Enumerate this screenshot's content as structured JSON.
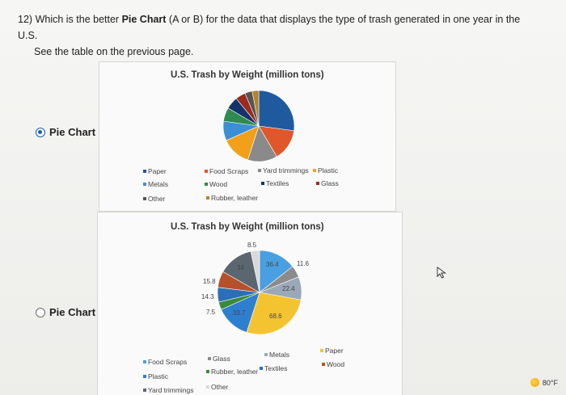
{
  "question": {
    "number": "12)",
    "text_before": "Which is the better ",
    "text_bold": "Pie Chart",
    "text_after": " (A or B) for the data that displays the type of trash generated in one year in the U.S.",
    "line2": "See the table on the previous page."
  },
  "options": [
    {
      "label": "Pie Chart",
      "selected": true
    },
    {
      "label": "Pie Chart",
      "selected": false
    }
  ],
  "chart_data": [
    {
      "type": "pie",
      "title": "U.S. Trash by Weight (million tons)",
      "legend_placement": "bottom",
      "legend": [
        "Paper",
        "Food Scraps",
        "Yard trimmings",
        "Plastic",
        "Metals",
        "Wood",
        "Textiles",
        "Glass",
        "Other",
        "Rubber, leather"
      ],
      "slices": [
        {
          "label": "Paper",
          "value": 68.6,
          "color": "#1f5a9e"
        },
        {
          "label": "Food Scraps",
          "value": 36.4,
          "color": "#e0572b"
        },
        {
          "label": "Yard trimmings",
          "value": 34,
          "color": "#8a8a8a"
        },
        {
          "label": "Plastic",
          "value": 33.7,
          "color": "#f2a019"
        },
        {
          "label": "Metals",
          "value": 22.4,
          "color": "#3b8fd6"
        },
        {
          "label": "Wood",
          "value": 15.8,
          "color": "#2e8a4e"
        },
        {
          "label": "Textiles",
          "value": 14.3,
          "color": "#14336b"
        },
        {
          "label": "Glass",
          "value": 11.6,
          "color": "#9c2a1e"
        },
        {
          "label": "Other",
          "value": 8.5,
          "color": "#555555"
        },
        {
          "label": "Rubber, leather",
          "value": 7.5,
          "color": "#b7832a"
        }
      ]
    },
    {
      "type": "pie",
      "title": "U.S. Trash by Weight (million tons)",
      "legend_placement": "bottom",
      "legend": [
        "Food Scraps",
        "Glass",
        "Metals",
        "Paper",
        "Plastic",
        "Rubber, leather",
        "Textiles",
        "Wood",
        "Yard trimmings",
        "Other"
      ],
      "slices": [
        {
          "label": "Food Scraps",
          "value": 36.4,
          "color": "#4a9fe0"
        },
        {
          "label": "Glass",
          "value": 11.6,
          "color": "#8c8c8c"
        },
        {
          "label": "Metals",
          "value": 22.4,
          "color": "#9aa9b8"
        },
        {
          "label": "Paper",
          "value": 68.6,
          "color": "#f4c430"
        },
        {
          "label": "Plastic",
          "value": 33.7,
          "color": "#2f7fd0"
        },
        {
          "label": "Rubber, leather",
          "value": 7.5,
          "color": "#3a8a3a"
        },
        {
          "label": "Textiles",
          "value": 14.3,
          "color": "#2a6fb8"
        },
        {
          "label": "Wood",
          "value": 15.8,
          "color": "#b5502a"
        },
        {
          "label": "Yard trimmings",
          "value": 34,
          "color": "#5c6670"
        },
        {
          "label": "Other",
          "value": 8.5,
          "color": "#d9d9d9"
        }
      ]
    }
  ],
  "chart_b_labels": [
    "8.5",
    "34",
    "36.4",
    "11.6",
    "22.4",
    "15.8",
    "14.3",
    "7.5",
    "33.7",
    "68.6"
  ],
  "taskbar": {
    "temperature": "80°F"
  }
}
